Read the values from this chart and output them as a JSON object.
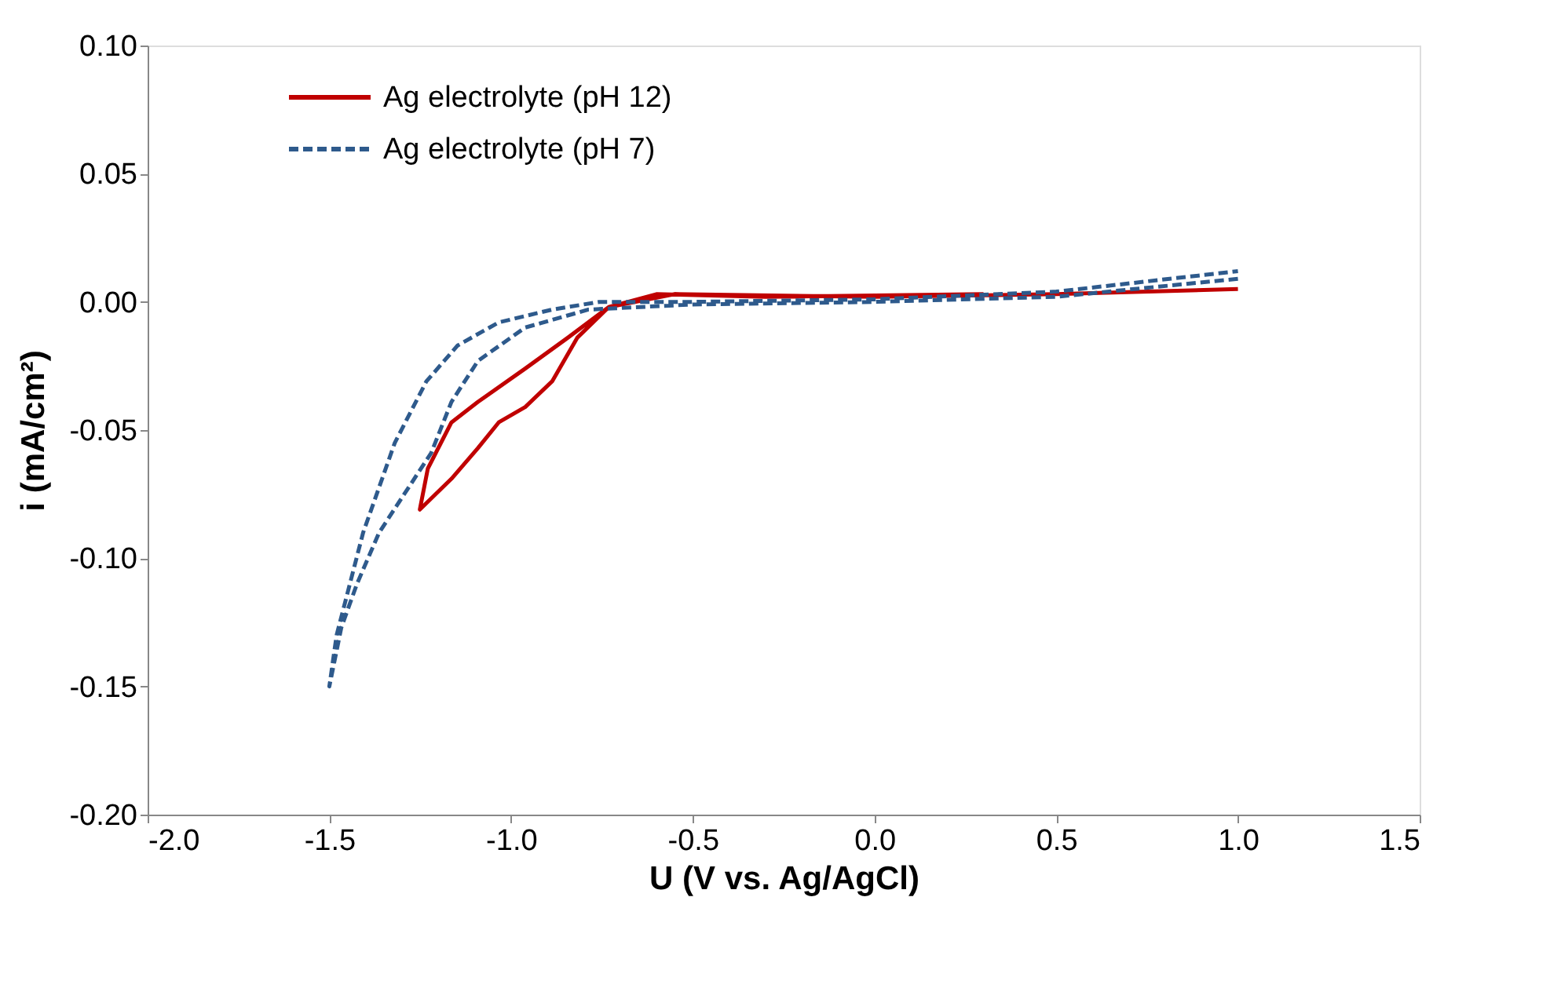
{
  "chart_data": {
    "type": "line",
    "xlabel": "U (V vs. Ag/AgCl)",
    "ylabel": "i (mA/cm²)",
    "xlim": [
      -2.0,
      1.5
    ],
    "xticks": [
      {
        "value": -2.0,
        "label": "-2.0"
      },
      {
        "value": -1.5,
        "label": "-1.5"
      },
      {
        "value": -1.0,
        "label": "-1.0"
      },
      {
        "value": -0.5,
        "label": "-0.5"
      },
      {
        "value": 0.0,
        "label": "0.0"
      },
      {
        "value": 0.5,
        "label": "0.5"
      },
      {
        "value": 1.0,
        "label": "1.0"
      },
      {
        "value": 1.5,
        "label": "1.5"
      }
    ],
    "ylim": [
      -0.2,
      0.1
    ],
    "yticks": [
      {
        "value": -0.2,
        "label": "-0.20"
      },
      {
        "value": -0.15,
        "label": "-0.15"
      },
      {
        "value": -0.1,
        "label": "-0.10"
      },
      {
        "value": -0.05,
        "label": "-0.05"
      },
      {
        "value": 0.0,
        "label": "0.00"
      },
      {
        "value": 0.05,
        "label": "0.05"
      },
      {
        "value": 0.1,
        "label": "0.10"
      }
    ],
    "grid": false,
    "legend": "top left",
    "marker": "none",
    "series": [
      {
        "name": "Ag electrolyte (pH 12)",
        "color": "#c00000",
        "line_style": "solid",
        "x": [
          1.0,
          0.5,
          0.0,
          -0.55,
          -0.731,
          -0.818,
          -0.887,
          -0.961,
          -1.034,
          -1.091,
          -1.164,
          -1.251,
          -1.229,
          -1.164,
          -1.091,
          -0.961,
          -0.844,
          -0.731,
          -0.6,
          -0.3,
          0.3
        ],
        "values": [
          0.005,
          0.003,
          0.002,
          0.003,
          -0.002,
          -0.014,
          -0.031,
          -0.041,
          -0.047,
          -0.057,
          -0.069,
          -0.081,
          -0.065,
          -0.047,
          -0.039,
          -0.026,
          -0.014,
          -0.002,
          0.003,
          0.002,
          0.003
        ]
      },
      {
        "name": "Ag electrolyte (pH 7)",
        "color": "#2e5a8c",
        "line_style": "dashed",
        "x": [
          1.0,
          0.5,
          0.0,
          -0.5,
          -0.787,
          -0.961,
          -1.091,
          -1.164,
          -1.22,
          -1.294,
          -1.363,
          -1.424,
          -1.467,
          -1.5,
          -1.48,
          -1.407,
          -1.32,
          -1.233,
          -1.147,
          -1.034,
          -0.887,
          -0.757,
          -0.5,
          0.0,
          0.5,
          1.0
        ],
        "values": [
          0.009,
          0.002,
          0.0,
          -0.001,
          -0.003,
          -0.01,
          -0.023,
          -0.039,
          -0.059,
          -0.075,
          -0.09,
          -0.11,
          -0.127,
          -0.15,
          -0.13,
          -0.09,
          -0.055,
          -0.031,
          -0.017,
          -0.008,
          -0.003,
          0.0,
          0.0,
          0.001,
          0.004,
          0.012
        ]
      }
    ]
  }
}
